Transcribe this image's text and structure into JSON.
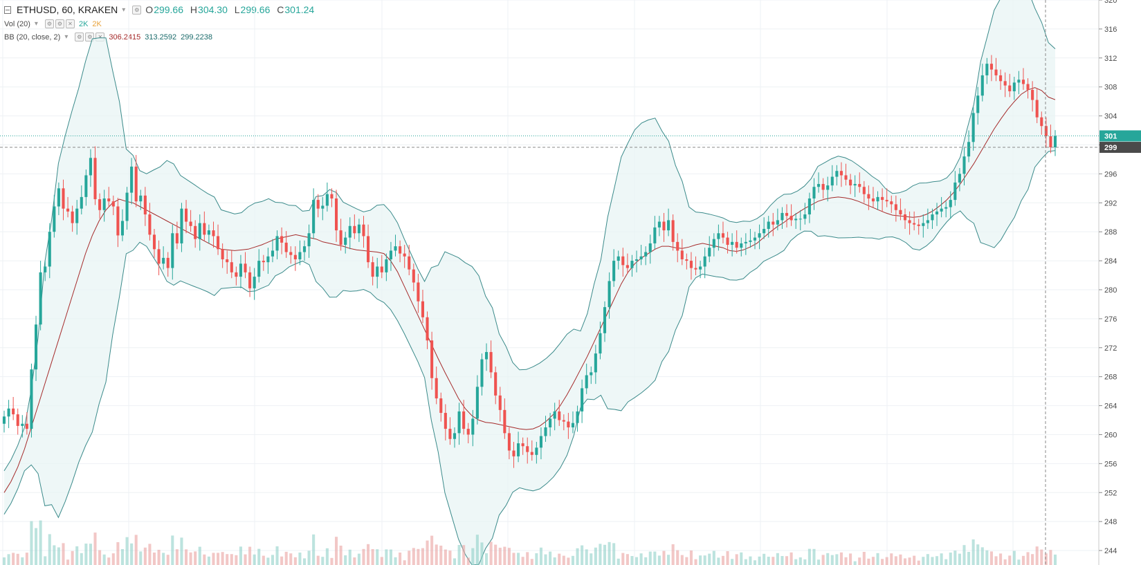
{
  "legend": {
    "symbol": "ETHUSD, 60, KRAKEN",
    "o_label": "O",
    "o_val": "299.66",
    "h_label": "H",
    "h_val": "304.30",
    "l_label": "L",
    "l_val": "299.66",
    "c_label": "C",
    "c_val": "301.24",
    "vol_label": "Vol (20)",
    "vol_v1": "2K",
    "vol_v2": "2K",
    "bb_label": "BB (20, close, 2)",
    "bb_mid": "306.2415",
    "bb_up": "313.2592",
    "bb_lo": "299.2238"
  },
  "chart_data": {
    "type": "candlestick",
    "symbol": "ETHUSD",
    "interval": "60",
    "exchange": "KRAKEN",
    "ylim": [
      242,
      320
    ],
    "y_ticks": [
      "244",
      "248",
      "252",
      "256",
      "260",
      "264",
      "268",
      "272",
      "276",
      "280",
      "284",
      "288",
      "292",
      "296",
      "300",
      "304",
      "308",
      "312",
      "316",
      "320"
    ],
    "y_tick_values": [
      244,
      248,
      252,
      256,
      260,
      264,
      268,
      272,
      276,
      280,
      284,
      288,
      292,
      296,
      300,
      304,
      308,
      312,
      316,
      320
    ],
    "y_tick_labels_shown": [
      "244",
      "248",
      "252",
      "256",
      "260",
      "264",
      "268",
      "272",
      "276",
      "280",
      "284",
      "288",
      "292",
      "296",
      "",
      "304",
      "308",
      "312",
      "316",
      "320"
    ],
    "last_price_label": "301",
    "prev_price_label": "299",
    "last_price": 301.24,
    "prev_price": 299.66,
    "grid": true,
    "colors": {
      "up": "#26a69a",
      "down": "#ef5350",
      "mid": "#a52a2a",
      "band": "#3a8a8a",
      "fill": "#e7f3f3"
    },
    "closes": [
      262.5,
      263.6,
      262.8,
      261.2,
      261.5,
      260.8,
      269.0,
      275.2,
      282.4,
      283.2,
      288.0,
      291.5,
      294.0,
      291.2,
      290.8,
      289.2,
      291.2,
      292.8,
      295.8,
      298.2,
      292.5,
      291.0,
      292.6,
      292.2,
      291.5,
      287.5,
      289.5,
      293.4,
      297.0,
      292.2,
      293.0,
      290.4,
      287.6,
      285.6,
      283.6,
      284.4,
      283.0,
      287.8,
      286.4,
      291.2,
      289.4,
      288.8,
      287.0,
      289.2,
      287.6,
      288.2,
      287.4,
      285.6,
      284.2,
      283.8,
      282.4,
      281.8,
      283.6,
      282.4,
      280.2,
      281.8,
      284.0,
      283.8,
      284.6,
      285.4,
      287.4,
      286.5,
      285.2,
      284.8,
      284.2,
      285.2,
      286.0,
      287.8,
      292.4,
      291.2,
      291.6,
      293.2,
      292.6,
      288.2,
      286.2,
      287.2,
      288.8,
      287.8,
      289.0,
      287.4,
      283.8,
      281.8,
      283.2,
      282.4,
      284.2,
      285.4,
      286.0,
      285.0,
      284.6,
      282.8,
      281.0,
      278.4,
      276.2,
      273.0,
      267.8,
      265.0,
      263.0,
      260.8,
      259.4,
      260.2,
      263.2,
      260.8,
      260.0,
      262.2,
      266.6,
      270.4,
      271.4,
      268.6,
      265.4,
      263.4,
      260.2,
      257.8,
      257.0,
      258.8,
      258.4,
      257.6,
      257.2,
      258.2,
      259.8,
      261.0,
      262.2,
      263.2,
      262.0,
      261.8,
      261.0,
      261.6,
      263.2,
      266.4,
      268.2,
      268.6,
      271.2,
      274.0,
      277.6,
      281.2,
      284.0,
      284.6,
      283.4,
      283.0,
      284.0,
      284.2,
      284.6,
      285.2,
      286.4,
      288.6,
      289.4,
      288.2,
      289.6,
      286.6,
      285.4,
      284.2,
      284.0,
      283.0,
      282.8,
      283.2,
      284.6,
      285.8,
      287.0,
      287.8,
      287.2,
      286.2,
      286.6,
      285.8,
      286.4,
      286.6,
      286.8,
      287.2,
      287.8,
      288.4,
      289.4,
      289.0,
      289.6,
      290.6,
      290.2,
      289.6,
      289.8,
      289.8,
      290.4,
      292.6,
      294.2,
      294.6,
      293.8,
      294.4,
      295.6,
      296.4,
      295.8,
      295.2,
      294.4,
      294.6,
      294.2,
      293.2,
      292.6,
      292.2,
      292.8,
      292.4,
      292.2,
      291.8,
      291.0,
      290.4,
      289.6,
      289.2,
      289.0,
      288.8,
      289.2,
      289.6,
      290.4,
      290.8,
      291.2,
      291.4,
      292.4,
      294.8,
      296.0,
      298.4,
      300.4,
      304.4,
      306.8,
      309.6,
      311.2,
      310.4,
      309.6,
      308.8,
      308.2,
      307.4,
      308.6,
      309.0,
      308.4,
      307.6,
      306.2,
      303.8,
      302.6,
      301.2,
      299.66,
      301.24
    ],
    "bb_mid": [
      252,
      253.5,
      255.5,
      258,
      261,
      264,
      267,
      270,
      273,
      276,
      279,
      282,
      285,
      287.5,
      289.5,
      291,
      292,
      292.5,
      292.2,
      292,
      291.5,
      291,
      290.5,
      290,
      289.5,
      289,
      288.5,
      288,
      287.5,
      287,
      286.5,
      286,
      285.6,
      285.5,
      285.4,
      285.5,
      285.6,
      285.9,
      286.2,
      286.6,
      287.0,
      287.2,
      287.4,
      287.6,
      287.4,
      287.2,
      287.0,
      286.6,
      286.4,
      286.2,
      286.0,
      285.7,
      285.5,
      285.4,
      285.3,
      285.2,
      285.0,
      284.0,
      282.5,
      280.5,
      278.5,
      276.5,
      274.5,
      272.5,
      270.5,
      268.6,
      266.8,
      265.0,
      263.6,
      262.6,
      262.0,
      261.7,
      261.6,
      261.4,
      261.2,
      261.0,
      260.8,
      260.7,
      260.8,
      261.2,
      261.9,
      262.8,
      264.0,
      265.5,
      267.2,
      269.0,
      270.8,
      272.8,
      274.8,
      276.8,
      278.8,
      280.8,
      282.4,
      283.6,
      284.4,
      285.0,
      285.6,
      286.0,
      286.0,
      285.8,
      285.7,
      285.9,
      286.2,
      286.4,
      286.2,
      286.0,
      285.8,
      285.4,
      285.3,
      285.5,
      285.9,
      286.4,
      287.2,
      288.0,
      288.7,
      289.3,
      290.0,
      290.6,
      291.2,
      291.7,
      292.2,
      292.5,
      292.7,
      292.8,
      292.7,
      292.5,
      292.2,
      291.8,
      291.4,
      291.0,
      290.6,
      290.3,
      290.2,
      290.1,
      290.0,
      290.1,
      290.4,
      290.9,
      291.6,
      292.4,
      293.4,
      294.6,
      296.0,
      297.4,
      299.0,
      300.6,
      302.2,
      303.6,
      304.9,
      306.0,
      307.0,
      307.6,
      307.9,
      307.5,
      306.6,
      306.24
    ]
  }
}
